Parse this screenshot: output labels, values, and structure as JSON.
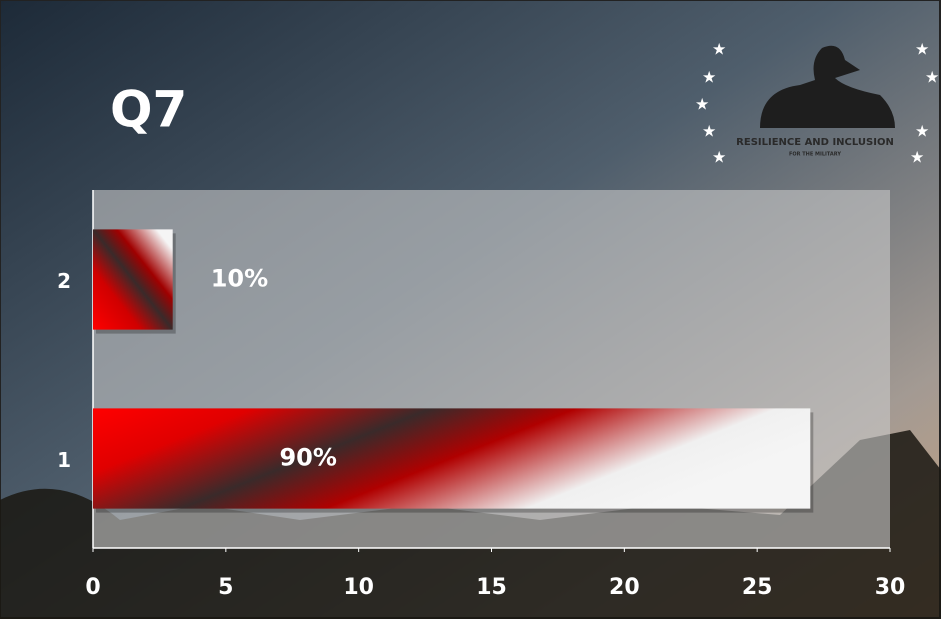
{
  "chart_data": {
    "type": "hbar",
    "title": "Q7",
    "logo": {
      "title": "RESILIENCE AND INCLUSION",
      "subtitle": "FOR THE MILITARY"
    },
    "categories": [
      "1",
      "2"
    ],
    "values": [
      27,
      3
    ],
    "value_labels": [
      "90%",
      "10%"
    ],
    "xlim": [
      0,
      30
    ],
    "xticks": [
      0,
      5,
      10,
      15,
      20,
      25,
      30
    ]
  }
}
